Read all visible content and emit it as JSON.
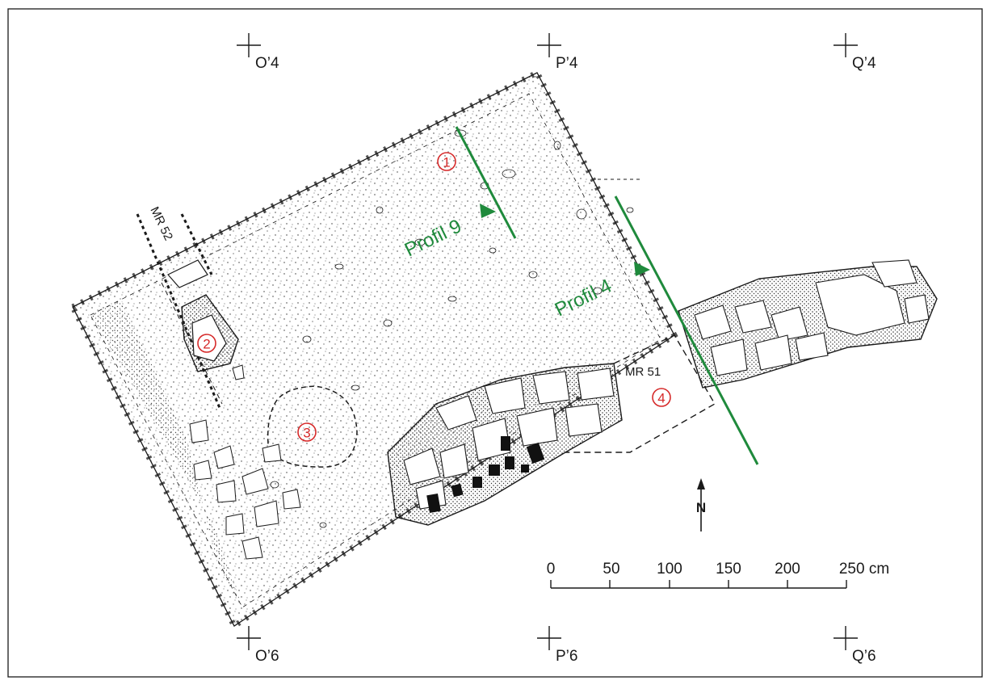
{
  "grid_markers": [
    {
      "id": "o4",
      "label": "O’4"
    },
    {
      "id": "p4",
      "label": "P’4"
    },
    {
      "id": "q4",
      "label": "Q’4"
    },
    {
      "id": "o6",
      "label": "O’6"
    },
    {
      "id": "p6",
      "label": "P’6"
    },
    {
      "id": "q6",
      "label": "Q’6"
    }
  ],
  "walls": {
    "mr52": "MR 52",
    "mr51": "MR 51"
  },
  "profiles": {
    "profil9": "Profil 9",
    "profil4": "Profil 4"
  },
  "numbered_zones": [
    "1",
    "2",
    "3",
    "4"
  ],
  "scale_bar": {
    "ticks": [
      "0",
      "50",
      "100",
      "150",
      "200",
      "250 cm"
    ]
  },
  "north_arrow": "N",
  "colors": {
    "profile_line": "#1f8a3c",
    "zone_marker": "#d62a2a",
    "drawing": "#1a1a1a"
  },
  "icons": [
    "north-arrow-icon",
    "grid-cross-icon",
    "profile-arrow-icon"
  ]
}
